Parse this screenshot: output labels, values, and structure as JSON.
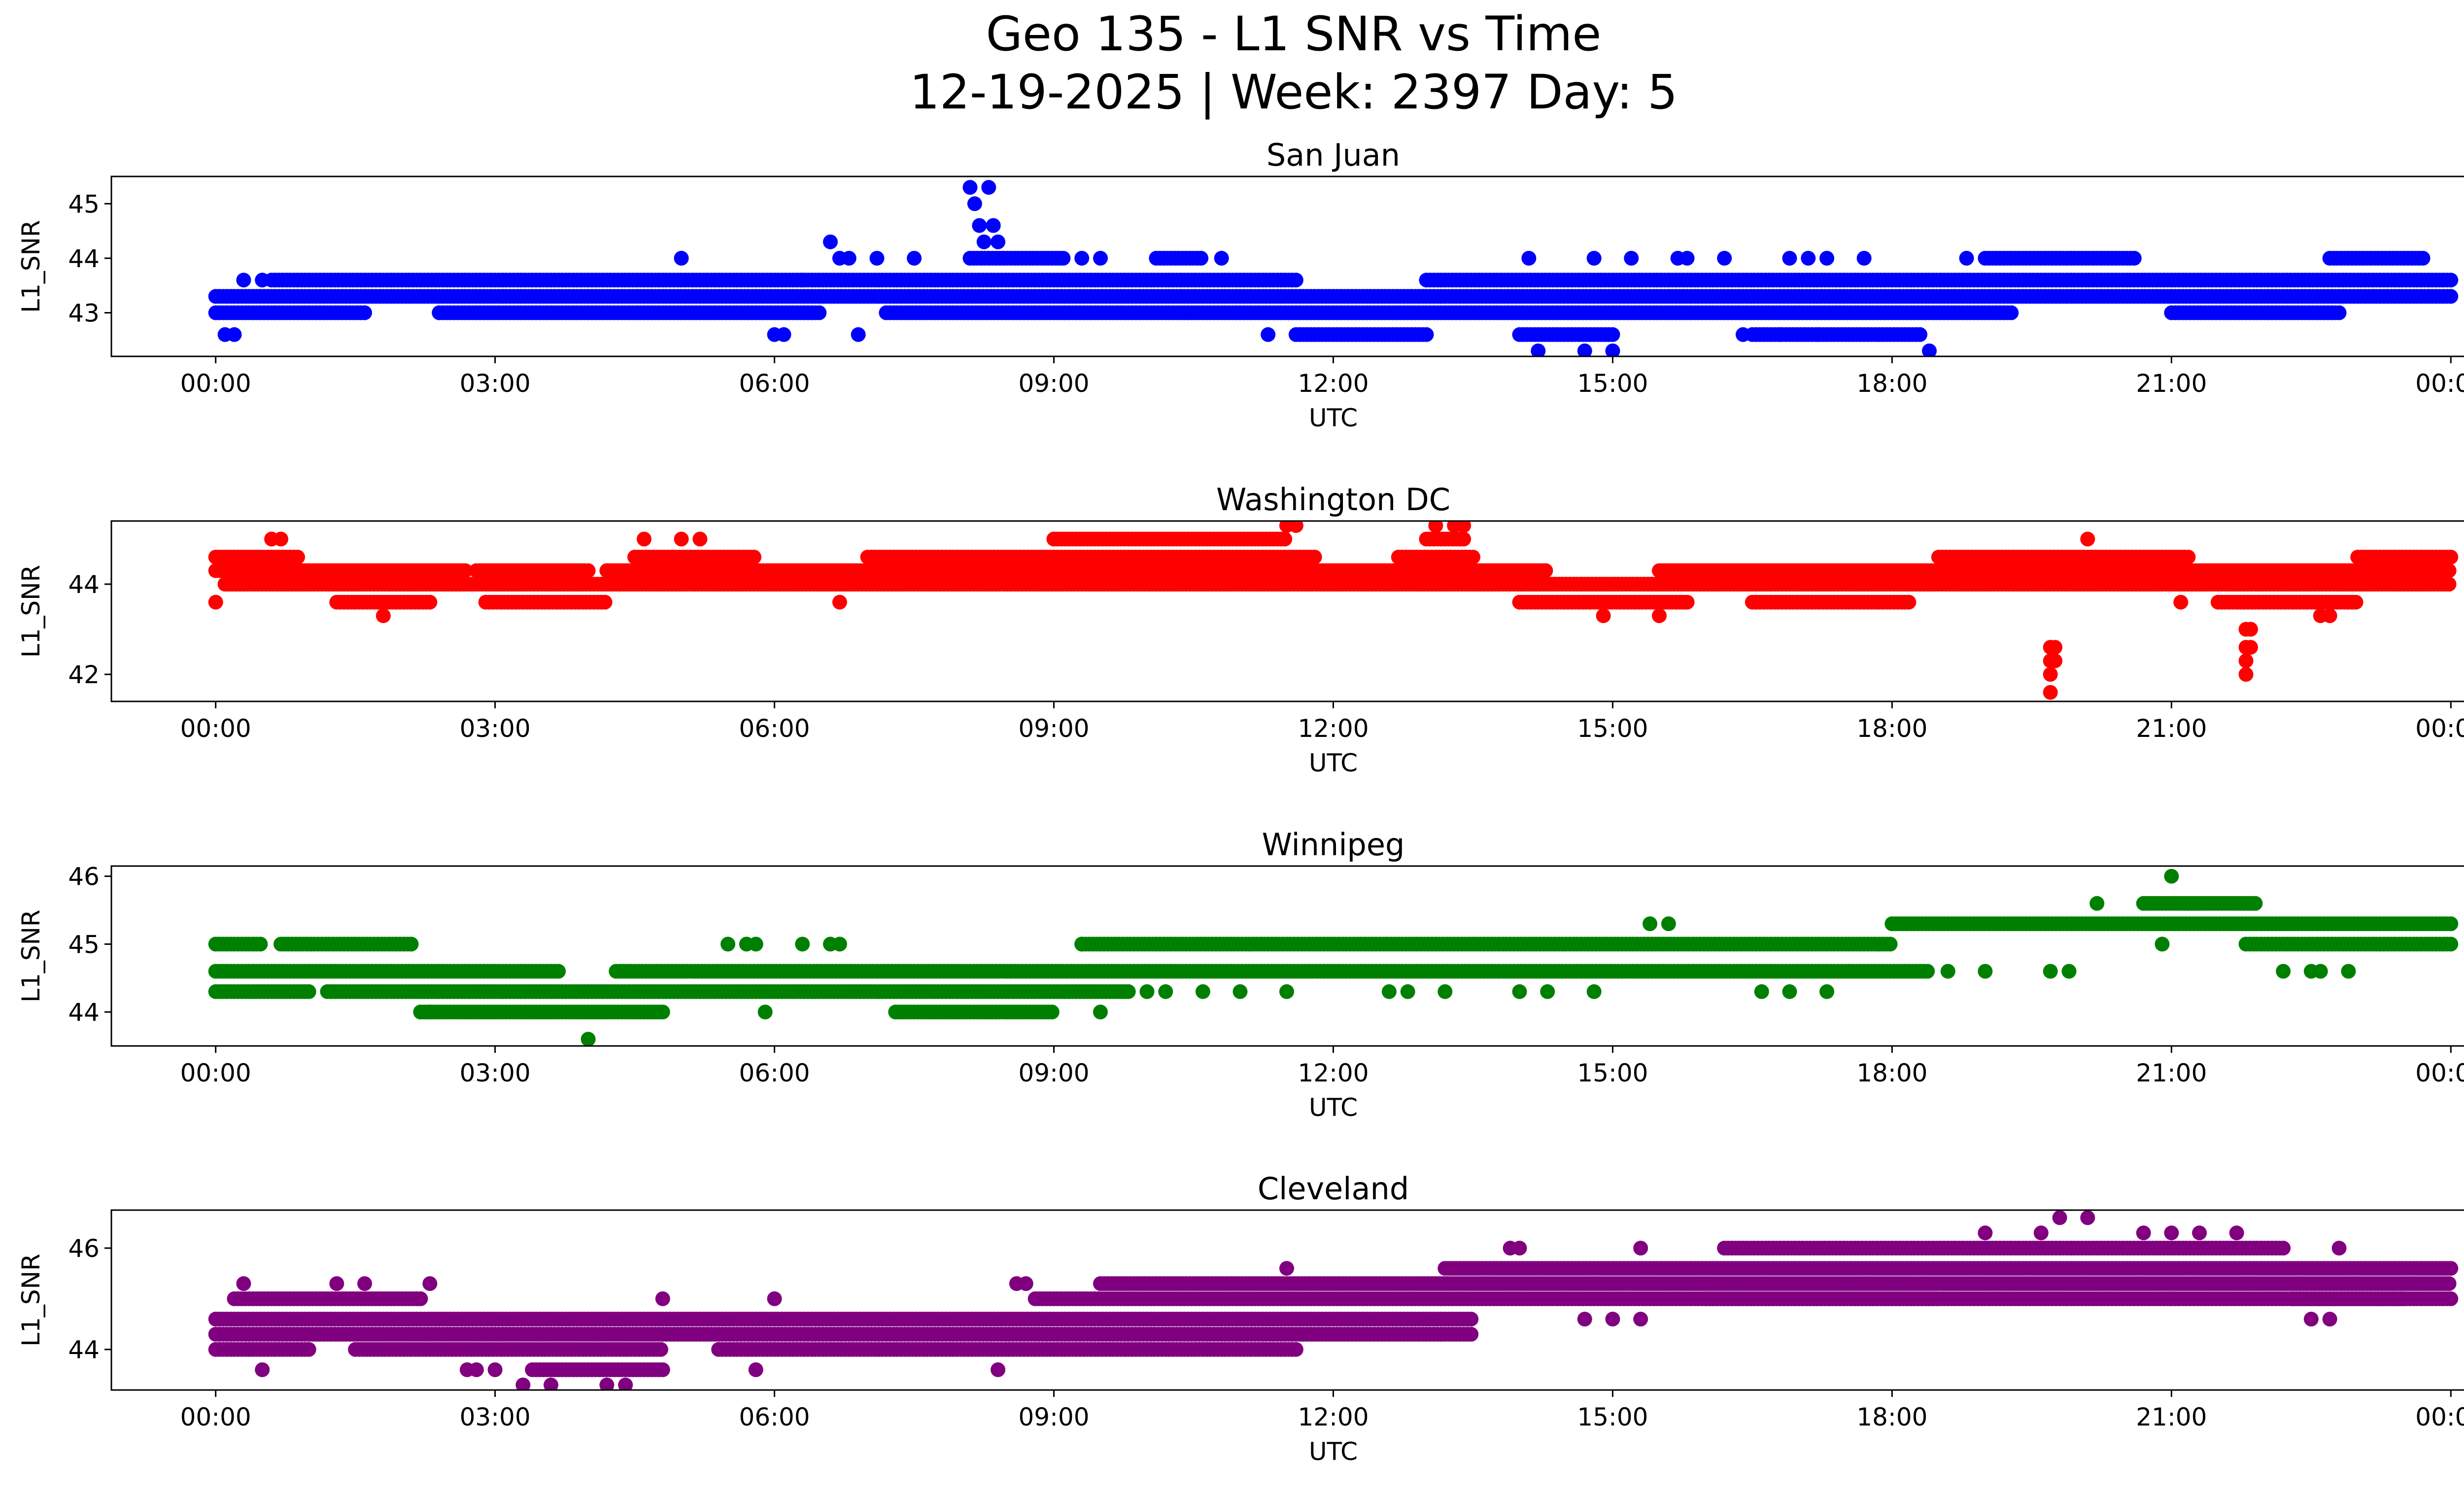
{
  "figure": {
    "title_line1": "Geo 135 - L1 SNR vs Time",
    "title_line2": "12-19-2025 | Week: 2397 Day: 5"
  },
  "chart_data": [
    {
      "type": "scatter",
      "title": "San Juan",
      "xlabel": "UTC",
      "ylabel": "L1_SNR",
      "color": "#0000ff",
      "xlim_hours": [
        -1.12,
        25.12
      ],
      "x_tick_labels": [
        "00:00",
        "03:00",
        "06:00",
        "09:00",
        "12:00",
        "15:00",
        "18:00",
        "21:00",
        "00:00"
      ],
      "y_ticks": [
        43,
        44,
        45
      ],
      "ylim": [
        42.2,
        45.5
      ],
      "series": [
        {
          "bands": [
            {
              "y": 43.3,
              "ranges": [
                [
                  0.0,
                  24.0
                ]
              ]
            },
            {
              "y": 43.6,
              "ranges": [
                [
                  0.6,
                  11.6
                ],
                [
                  13.0,
                  24.0
                ]
              ]
            },
            {
              "y": 43.0,
              "ranges": [
                [
                  0.0,
                  1.6
                ],
                [
                  2.4,
                  6.5
                ],
                [
                  7.2,
                  19.3
                ],
                [
                  21.0,
                  22.8
                ]
              ]
            },
            {
              "y": 42.6,
              "ranges": [
                [
                  11.6,
                  13.0
                ],
                [
                  14.0,
                  15.0
                ],
                [
                  16.5,
                  18.3
                ]
              ]
            },
            {
              "y": 44.0,
              "ranges": [
                [
                  8.1,
                  9.1
                ],
                [
                  10.1,
                  10.6
                ],
                [
                  19.0,
                  20.6
                ],
                [
                  22.7,
                  23.7
                ]
              ]
            }
          ],
          "points": [
            [
              0.1,
              42.6
            ],
            [
              0.2,
              42.6
            ],
            [
              0.3,
              43.6
            ],
            [
              0.5,
              43.6
            ],
            [
              5.0,
              44.0
            ],
            [
              6.0,
              42.6
            ],
            [
              6.1,
              42.6
            ],
            [
              6.3,
              43.6
            ],
            [
              6.6,
              44.3
            ],
            [
              6.7,
              44.0
            ],
            [
              6.8,
              44.0
            ],
            [
              6.9,
              42.6
            ],
            [
              7.1,
              44.0
            ],
            [
              7.5,
              44.0
            ],
            [
              8.1,
              45.3
            ],
            [
              8.15,
              45.0
            ],
            [
              8.2,
              44.6
            ],
            [
              8.25,
              44.3
            ],
            [
              8.3,
              45.3
            ],
            [
              8.35,
              44.6
            ],
            [
              8.4,
              44.3
            ],
            [
              9.3,
              44.0
            ],
            [
              9.5,
              44.0
            ],
            [
              10.8,
              44.0
            ],
            [
              11.3,
              42.6
            ],
            [
              14.1,
              44.0
            ],
            [
              14.2,
              42.3
            ],
            [
              14.7,
              42.3
            ],
            [
              15.0,
              42.3
            ],
            [
              14.8,
              44.0
            ],
            [
              15.2,
              44.0
            ],
            [
              15.7,
              44.0
            ],
            [
              15.8,
              44.0
            ],
            [
              16.2,
              44.0
            ],
            [
              16.4,
              42.6
            ],
            [
              16.8,
              42.6
            ],
            [
              17.2,
              42.6
            ],
            [
              16.9,
              44.0
            ],
            [
              17.1,
              44.0
            ],
            [
              17.3,
              44.0
            ],
            [
              17.7,
              44.0
            ],
            [
              18.4,
              42.3
            ],
            [
              18.8,
              44.0
            ]
          ]
        }
      ]
    },
    {
      "type": "scatter",
      "title": "Washington DC",
      "xlabel": "UTC",
      "ylabel": "L1_SNR",
      "color": "#ff0000",
      "xlim_hours": [
        -1.12,
        25.12
      ],
      "x_tick_labels": [
        "00:00",
        "03:00",
        "06:00",
        "09:00",
        "12:00",
        "15:00",
        "18:00",
        "21:00",
        "00:00"
      ],
      "y_ticks": [
        42,
        44
      ],
      "ylim": [
        41.4,
        45.4
      ],
      "series": [
        {
          "bands": [
            {
              "y": 44.0,
              "ranges": [
                [
                  0.1,
                  24.0
                ]
              ]
            },
            {
              "y": 44.3,
              "ranges": [
                [
                  0.0,
                  2.7
                ],
                [
                  2.8,
                  4.0
                ],
                [
                  4.2,
                  14.3
                ],
                [
                  15.5,
                  24.0
                ]
              ]
            },
            {
              "y": 44.6,
              "ranges": [
                [
                  0.0,
                  0.9
                ],
                [
                  4.5,
                  5.8
                ],
                [
                  7.0,
                  11.8
                ],
                [
                  12.7,
                  13.5
                ],
                [
                  18.5,
                  21.2
                ],
                [
                  23.0,
                  24.0
                ]
              ]
            },
            {
              "y": 43.6,
              "ranges": [
                [
                  1.3,
                  2.3
                ],
                [
                  2.9,
                  4.2
                ],
                [
                  14.0,
                  15.8
                ],
                [
                  16.5,
                  18.2
                ],
                [
                  21.5,
                  23.0
                ]
              ]
            },
            {
              "y": 45.0,
              "ranges": [
                [
                  9.0,
                  11.5
                ],
                [
                  13.0,
                  13.4
                ]
              ]
            }
          ],
          "points": [
            [
              0.0,
              43.6
            ],
            [
              0.6,
              45.0
            ],
            [
              0.7,
              45.0
            ],
            [
              1.8,
              43.3
            ],
            [
              4.6,
              45.0
            ],
            [
              5.0,
              45.0
            ],
            [
              5.2,
              45.0
            ],
            [
              6.7,
              43.6
            ],
            [
              11.5,
              45.3
            ],
            [
              11.6,
              45.3
            ],
            [
              13.1,
              45.3
            ],
            [
              13.3,
              45.3
            ],
            [
              13.4,
              45.3
            ],
            [
              14.9,
              43.3
            ],
            [
              15.5,
              43.3
            ],
            [
              19.7,
              42.6
            ],
            [
              19.7,
              42.3
            ],
            [
              19.7,
              42.0
            ],
            [
              19.7,
              41.6
            ],
            [
              19.75,
              42.6
            ],
            [
              19.75,
              42.3
            ],
            [
              20.1,
              45.0
            ],
            [
              21.1,
              43.6
            ],
            [
              21.8,
              43.0
            ],
            [
              21.8,
              42.6
            ],
            [
              21.8,
              42.3
            ],
            [
              21.8,
              42.0
            ],
            [
              21.85,
              42.6
            ],
            [
              21.85,
              43.0
            ],
            [
              22.6,
              43.3
            ],
            [
              22.7,
              43.3
            ]
          ]
        }
      ]
    },
    {
      "type": "scatter",
      "title": "Winnipeg",
      "xlabel": "UTC",
      "ylabel": "L1_SNR",
      "color": "#008000",
      "xlim_hours": [
        -1.12,
        25.12
      ],
      "x_tick_labels": [
        "00:00",
        "03:00",
        "06:00",
        "09:00",
        "12:00",
        "15:00",
        "18:00",
        "21:00",
        "00:00"
      ],
      "y_ticks": [
        44,
        45,
        46
      ],
      "ylim": [
        43.5,
        46.15
      ],
      "series": [
        {
          "bands": [
            {
              "y": 44.6,
              "ranges": [
                [
                  0.0,
                  3.7
                ],
                [
                  4.3,
                  18.4
                ]
              ]
            },
            {
              "y": 44.3,
              "ranges": [
                [
                  0.0,
                  1.0
                ],
                [
                  1.2,
                  9.8
                ]
              ]
            },
            {
              "y": 44.0,
              "ranges": [
                [
                  2.2,
                  4.8
                ],
                [
                  7.3,
                  9.0
                ]
              ]
            },
            {
              "y": 45.0,
              "ranges": [
                [
                  0.0,
                  0.5
                ],
                [
                  0.7,
                  2.1
                ],
                [
                  9.3,
                  18.0
                ],
                [
                  21.8,
                  24.0
                ]
              ]
            },
            {
              "y": 45.3,
              "ranges": [
                [
                  18.0,
                  24.0
                ]
              ]
            },
            {
              "y": 45.6,
              "ranges": [
                [
                  20.7,
                  21.9
                ]
              ]
            }
          ],
          "points": [
            [
              4.0,
              43.6
            ],
            [
              2.2,
              44.0
            ],
            [
              2.3,
              44.0
            ],
            [
              5.5,
              45.0
            ],
            [
              5.7,
              45.0
            ],
            [
              5.8,
              45.0
            ],
            [
              6.3,
              45.0
            ],
            [
              6.6,
              45.0
            ],
            [
              6.7,
              45.0
            ],
            [
              5.9,
              44.0
            ],
            [
              9.3,
              45.0
            ],
            [
              9.5,
              44.0
            ],
            [
              10.0,
              44.3
            ],
            [
              10.2,
              44.3
            ],
            [
              10.6,
              44.3
            ],
            [
              11.0,
              44.3
            ],
            [
              11.5,
              44.3
            ],
            [
              12.6,
              44.3
            ],
            [
              12.8,
              44.3
            ],
            [
              13.2,
              44.3
            ],
            [
              14.0,
              44.3
            ],
            [
              14.3,
              44.3
            ],
            [
              14.8,
              44.3
            ],
            [
              15.4,
              45.3
            ],
            [
              15.6,
              45.3
            ],
            [
              16.6,
              44.3
            ],
            [
              16.9,
              44.3
            ],
            [
              17.3,
              44.3
            ],
            [
              18.6,
              44.6
            ],
            [
              19.0,
              44.6
            ],
            [
              19.7,
              44.6
            ],
            [
              19.9,
              44.6
            ],
            [
              20.2,
              45.6
            ],
            [
              20.9,
              45.0
            ],
            [
              21.0,
              46.0
            ],
            [
              22.2,
              44.6
            ],
            [
              22.5,
              44.6
            ],
            [
              22.6,
              44.6
            ],
            [
              22.9,
              44.6
            ]
          ]
        }
      ]
    },
    {
      "type": "scatter",
      "title": "Cleveland",
      "xlabel": "UTC",
      "ylabel": "L1_SNR",
      "color": "#800080",
      "xlim_hours": [
        -1.12,
        25.12
      ],
      "x_tick_labels": [
        "00:00",
        "03:00",
        "06:00",
        "09:00",
        "12:00",
        "15:00",
        "18:00",
        "21:00",
        "00:00"
      ],
      "y_ticks": [
        44,
        46
      ],
      "ylim": [
        43.2,
        46.75
      ],
      "series": [
        {
          "bands": [
            {
              "y": 44.6,
              "ranges": [
                [
                  0.0,
                  13.5
                ]
              ]
            },
            {
              "y": 44.3,
              "ranges": [
                [
                  0.0,
                  13.5
                ]
              ]
            },
            {
              "y": 44.0,
              "ranges": [
                [
                  0.0,
                  1.0
                ],
                [
                  1.5,
                  4.8
                ],
                [
                  5.4,
                  11.6
                ]
              ]
            },
            {
              "y": 45.0,
              "ranges": [
                [
                  0.2,
                  2.2
                ],
                [
                  8.8,
                  24.0
                ]
              ]
            },
            {
              "y": 43.6,
              "ranges": [
                [
                  3.4,
                  4.8
                ]
              ]
            },
            {
              "y": 45.3,
              "ranges": [
                [
                  9.5,
                  24.0
                ]
              ]
            },
            {
              "y": 45.6,
              "ranges": [
                [
                  13.2,
                  24.0
                ]
              ]
            },
            {
              "y": 46.0,
              "ranges": [
                [
                  16.2,
                  22.2
                ]
              ]
            },
            {
              "y": 45.0,
              "ranges": [
                [
                  16.0,
                  18.5
                ],
                [
                  22.3,
                  23.5
                ]
              ]
            }
          ],
          "points": [
            [
              0.3,
              45.3
            ],
            [
              0.5,
              43.6
            ],
            [
              1.3,
              45.3
            ],
            [
              1.6,
              45.3
            ],
            [
              2.3,
              45.3
            ],
            [
              2.7,
              43.6
            ],
            [
              2.8,
              43.6
            ],
            [
              3.0,
              43.6
            ],
            [
              3.3,
              43.3
            ],
            [
              3.6,
              43.3
            ],
            [
              4.2,
              43.3
            ],
            [
              4.4,
              43.3
            ],
            [
              4.8,
              45.0
            ],
            [
              5.8,
              43.6
            ],
            [
              6.0,
              45.0
            ],
            [
              8.4,
              43.6
            ],
            [
              8.6,
              45.3
            ],
            [
              8.7,
              45.3
            ],
            [
              11.5,
              45.6
            ],
            [
              14.7,
              44.6
            ],
            [
              15.0,
              44.6
            ],
            [
              15.3,
              44.6
            ],
            [
              13.9,
              46.0
            ],
            [
              14.0,
              46.0
            ],
            [
              15.3,
              46.0
            ],
            [
              19.0,
              46.3
            ],
            [
              19.8,
              46.6
            ],
            [
              20.1,
              46.6
            ],
            [
              19.6,
              46.3
            ],
            [
              20.7,
              46.3
            ],
            [
              21.0,
              46.3
            ],
            [
              21.3,
              46.3
            ],
            [
              21.7,
              46.3
            ],
            [
              22.5,
              44.6
            ],
            [
              22.7,
              44.6
            ],
            [
              22.8,
              46.0
            ],
            [
              23.4,
              45.0
            ],
            [
              21.0,
              45.0
            ],
            [
              22.3,
              45.0
            ]
          ]
        }
      ]
    }
  ]
}
